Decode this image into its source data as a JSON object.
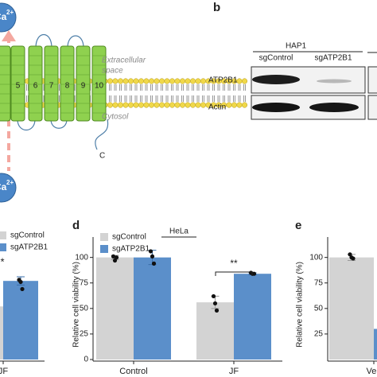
{
  "diagram": {
    "ion": {
      "symbol": "Ca",
      "charge": "2+"
    },
    "helices": [
      "5",
      "6",
      "7",
      "8",
      "9",
      "10"
    ],
    "extracellular": [
      "Extracellular",
      "space"
    ],
    "cytosol": "Cytosol",
    "terminus": "C"
  },
  "blot": {
    "panel_label": "b",
    "cell_line": "HAP1",
    "lanes": [
      "sgControl",
      "sgATP2B1"
    ],
    "rows": [
      "ATP2B1",
      "Actin"
    ]
  },
  "chart_data": [
    {
      "type": "bar",
      "categories": [
        "JF"
      ],
      "series": [
        {
          "name": "sgControl",
          "color": "#d3d3d3",
          "values": [
            52
          ]
        },
        {
          "name": "sgATP2B1",
          "color": "#5b8fca",
          "values": [
            77
          ],
          "errors": [
            4
          ],
          "points": [
            [
              78,
              76,
              69
            ]
          ]
        }
      ],
      "ylim": [
        0,
        120
      ],
      "annotations": [
        "*"
      ]
    },
    {
      "type": "bar",
      "panel_label": "d",
      "subtitle": "HeLa",
      "y_label": "Relative cell viability (%)",
      "categories": [
        "Control",
        "JF"
      ],
      "series": [
        {
          "name": "sgControl",
          "color": "#d3d3d3",
          "values": [
            100,
            56
          ],
          "errors": [
            2,
            6
          ],
          "points": [
            [
              101,
              97,
              100
            ],
            [
              62,
              55,
              48
            ]
          ]
        },
        {
          "name": "sgATP2B1",
          "color": "#5b8fca",
          "values": [
            100,
            84
          ],
          "errors": [
            7,
            1
          ],
          "points": [
            [
              106,
              101,
              94
            ],
            [
              85,
              84,
              84
            ]
          ]
        }
      ],
      "ylim": [
        0,
        120
      ],
      "yticks": [
        0,
        25,
        50,
        75,
        100
      ],
      "annotations": [
        "**"
      ]
    },
    {
      "type": "bar",
      "panel_label": "e",
      "y_label": "Relative cell viability (%)",
      "categories": [
        "Veh"
      ],
      "series": [
        {
          "name": "sgControl",
          "color": "#d3d3d3",
          "values": [
            100
          ],
          "errors": [
            3
          ],
          "points": [
            [
              103,
              100,
              99
            ]
          ]
        },
        {
          "name": "sgATP2B1",
          "color": "#5b8fca",
          "values": [
            30
          ]
        }
      ],
      "ylim": [
        0,
        120
      ],
      "yticks": [
        25,
        50,
        75,
        100
      ]
    }
  ]
}
